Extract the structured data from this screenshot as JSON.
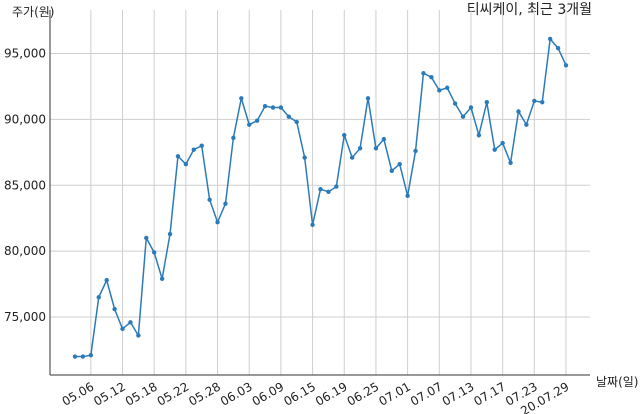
{
  "chart_data": {
    "type": "line",
    "title": "티씨케이, 최근 3개월",
    "y_label": "주가(원)",
    "x_label": "날짜(일)",
    "categories": [
      null,
      null,
      "05.06",
      null,
      null,
      null,
      "05.12",
      null,
      null,
      null,
      "05.18",
      null,
      null,
      null,
      "05.22",
      null,
      null,
      null,
      "05.28",
      null,
      null,
      null,
      "06.03",
      null,
      null,
      null,
      "06.09",
      null,
      null,
      null,
      "06.15",
      null,
      null,
      null,
      "06.19",
      null,
      null,
      null,
      "06.25",
      null,
      null,
      null,
      "07.01",
      null,
      null,
      null,
      "07.07",
      null,
      null,
      null,
      "07.13",
      null,
      null,
      null,
      "07.17",
      null,
      null,
      null,
      "07.23",
      null,
      null,
      null,
      "20.07.29"
    ],
    "values": [
      72000,
      72000,
      72100,
      76500,
      77800,
      75600,
      74100,
      74600,
      73600,
      81000,
      79900,
      77900,
      81300,
      87200,
      86600,
      87700,
      88000,
      83900,
      82200,
      83600,
      88600,
      91600,
      89600,
      89900,
      91000,
      90900,
      90900,
      90200,
      89800,
      87100,
      82000,
      84700,
      84500,
      84900,
      88800,
      87100,
      87800,
      91600,
      87800,
      88500,
      86100,
      86600,
      84200,
      87600,
      93500,
      93200,
      92200,
      92400,
      91200,
      90200,
      90900,
      88800,
      91300,
      87700,
      88200,
      86700,
      90600,
      89600,
      91400,
      91300,
      96100,
      95400,
      94100
    ],
    "color": "#2b7bba",
    "ylim": [
      70600,
      98300
    ],
    "yticks": [
      {
        "value": 75000,
        "label": "75,000"
      },
      {
        "value": 80000,
        "label": "80,000"
      },
      {
        "value": 85000,
        "label": "85,000"
      },
      {
        "value": 90000,
        "label": "90,000"
      },
      {
        "value": 95000,
        "label": "95,000"
      }
    ],
    "grid": true
  }
}
